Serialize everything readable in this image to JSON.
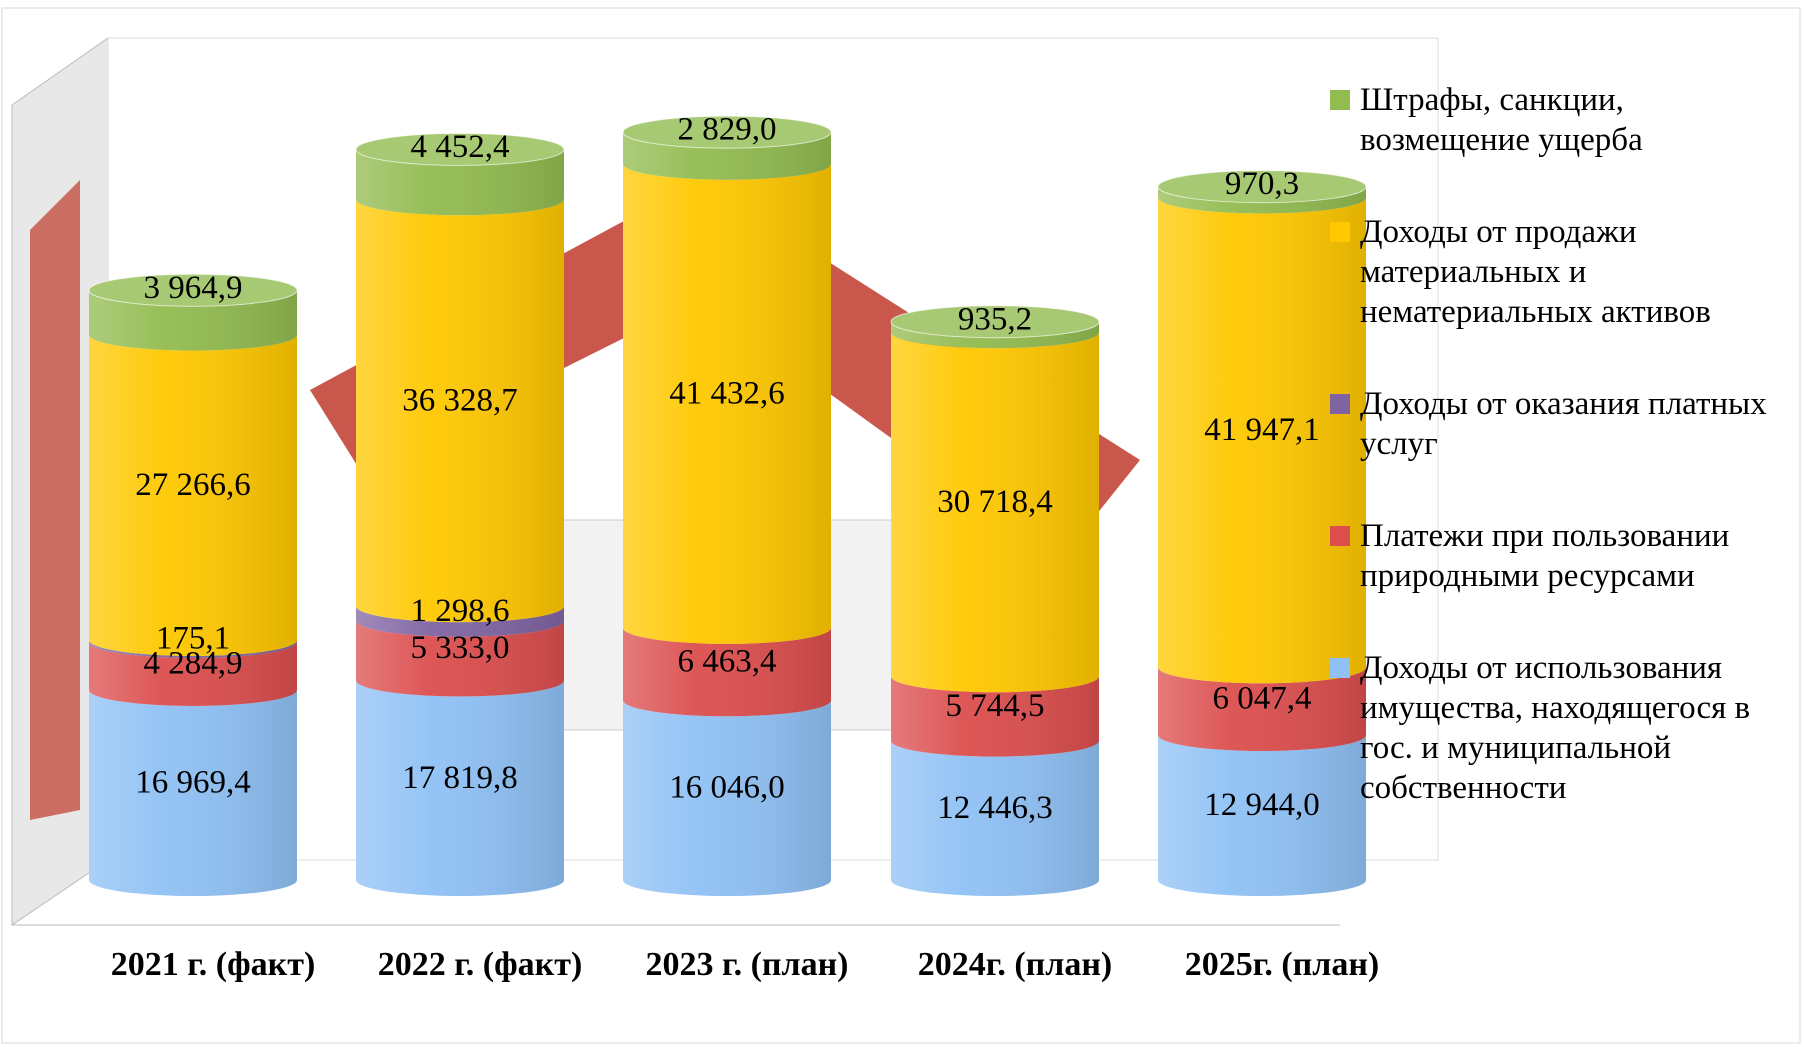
{
  "chart_data": {
    "type": "stacked-cylinder",
    "categories": [
      "2021 г. (факт)",
      "2022 г. (факт)",
      "2023 г. (план)",
      "2024г. (план)",
      "2025г. (план)"
    ],
    "series": [
      {
        "name": "Доходы от использования имущества, находящегося в гос. и муниципальной собственности",
        "color": "#8fc1f5",
        "values": [
          16969.4,
          17819.8,
          16046.0,
          12446.3,
          12944.0
        ],
        "value_labels": [
          "16 969,4",
          "17 819,8",
          "16 046,0",
          "12 446,3",
          "12 944,0"
        ]
      },
      {
        "name": "Платежи при пользовании природными ресурсами",
        "color": "#dc4e4e",
        "values": [
          4284.9,
          5333.0,
          6463.4,
          5744.5,
          6047.4
        ],
        "value_labels": [
          "4 284,9",
          "5 333,0",
          "6 463,4",
          "5 744,5",
          "6 047,4"
        ]
      },
      {
        "name": "Доходы от оказания платных услуг",
        "color": "#8064a2",
        "values": [
          175.1,
          1298.6,
          null,
          null,
          null
        ],
        "value_labels": [
          "175,1",
          "1 298,6",
          null,
          null,
          null
        ]
      },
      {
        "name": "Доходы от продажи материальных и нематериальных активов",
        "color": "#ffc800",
        "values": [
          27266.6,
          36328.7,
          41432.6,
          30718.4,
          41947.1
        ],
        "value_labels": [
          "27 266,6",
          "36 328,7",
          "41 432,6",
          "30 718,4",
          "41 947,1"
        ]
      },
      {
        "name": "Штрафы, санкции, возмещение ущерба",
        "color": "#92bb50",
        "values": [
          3964.9,
          4452.4,
          2829.0,
          935.2,
          970.3
        ],
        "value_labels": [
          "3 964,9",
          "4 452,4",
          "2 829,0",
          "935,2",
          "970,3"
        ]
      }
    ],
    "ylim": [
      0,
      75000
    ],
    "legend": "right"
  }
}
